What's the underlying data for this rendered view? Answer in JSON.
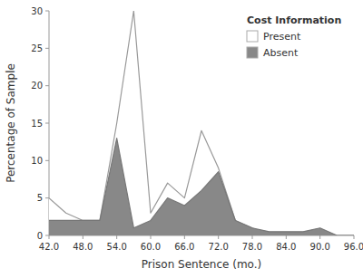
{
  "chart_data": {
    "type": "area",
    "x_label": "Prison Sentence (mo.)",
    "y_label": "Percentage of Sample",
    "legend_title": "Cost Information",
    "legend": "upper right",
    "x": [
      42,
      45,
      48,
      51,
      54,
      57,
      60,
      63,
      66,
      69,
      72,
      75,
      78,
      81,
      84,
      87,
      90,
      93,
      96
    ],
    "series": [
      {
        "name": "Present",
        "color": "#ffffff",
        "values": [
          5,
          3,
          2,
          2,
          15,
          30,
          3,
          7,
          5,
          14,
          9,
          2,
          1,
          0,
          0,
          0,
          0,
          0,
          0
        ]
      },
      {
        "name": "Absent",
        "color": "#888888",
        "values": [
          2,
          2,
          2,
          2,
          13,
          1,
          2,
          5,
          4,
          6,
          8.5,
          2,
          1,
          0.5,
          0.5,
          0.5,
          1,
          0,
          0
        ]
      }
    ],
    "xlim": [
      42,
      96
    ],
    "ylim": [
      0,
      30
    ],
    "xticks": [
      {
        "value": 42,
        "label": "42.0"
      },
      {
        "value": 48,
        "label": "48.0"
      },
      {
        "value": 54,
        "label": "54.0"
      },
      {
        "value": 60,
        "label": "60.0"
      },
      {
        "value": 66,
        "label": "66.0"
      },
      {
        "value": 72,
        "label": "72.0"
      },
      {
        "value": 78,
        "label": "78.0"
      },
      {
        "value": 84,
        "label": "84.0"
      },
      {
        "value": 90,
        "label": "90.0"
      },
      {
        "value": 96,
        "label": "96.0"
      }
    ],
    "yticks": [
      0,
      5,
      10,
      15,
      20,
      25,
      30
    ]
  }
}
